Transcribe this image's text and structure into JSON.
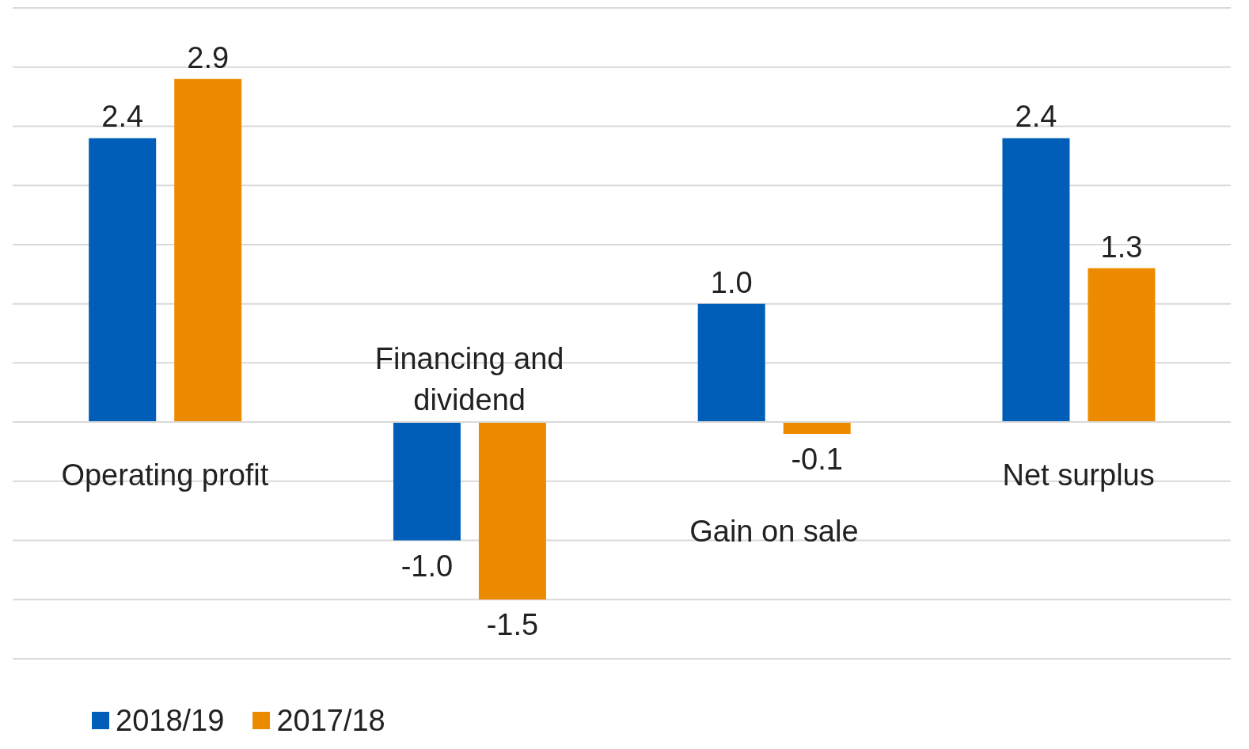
{
  "chart_data": {
    "type": "bar",
    "categories": [
      "Operating profit",
      "Financing and dividend",
      "Gain on sale",
      "Net surplus"
    ],
    "series": [
      {
        "name": "2018/19",
        "color": "#005eb8",
        "values": [
          2.4,
          -1.0,
          1.0,
          2.4
        ],
        "value_labels": [
          "2.4",
          "-1.0",
          "1.0",
          "2.4"
        ]
      },
      {
        "name": "2017/18",
        "color": "#ed8b00",
        "values": [
          2.9,
          -1.5,
          -0.1,
          1.3
        ],
        "value_labels": [
          "2.9",
          "-1.5",
          "-0.1",
          "1.3"
        ]
      }
    ],
    "ylim": [
      -2,
      3.5
    ],
    "yticks": [
      -2,
      -1.5,
      -1,
      -0.5,
      0,
      0.5,
      1,
      1.5,
      2,
      2.5,
      3,
      3.5
    ],
    "grid": "y",
    "tick_labels": "x",
    "legend": "bottom left"
  }
}
